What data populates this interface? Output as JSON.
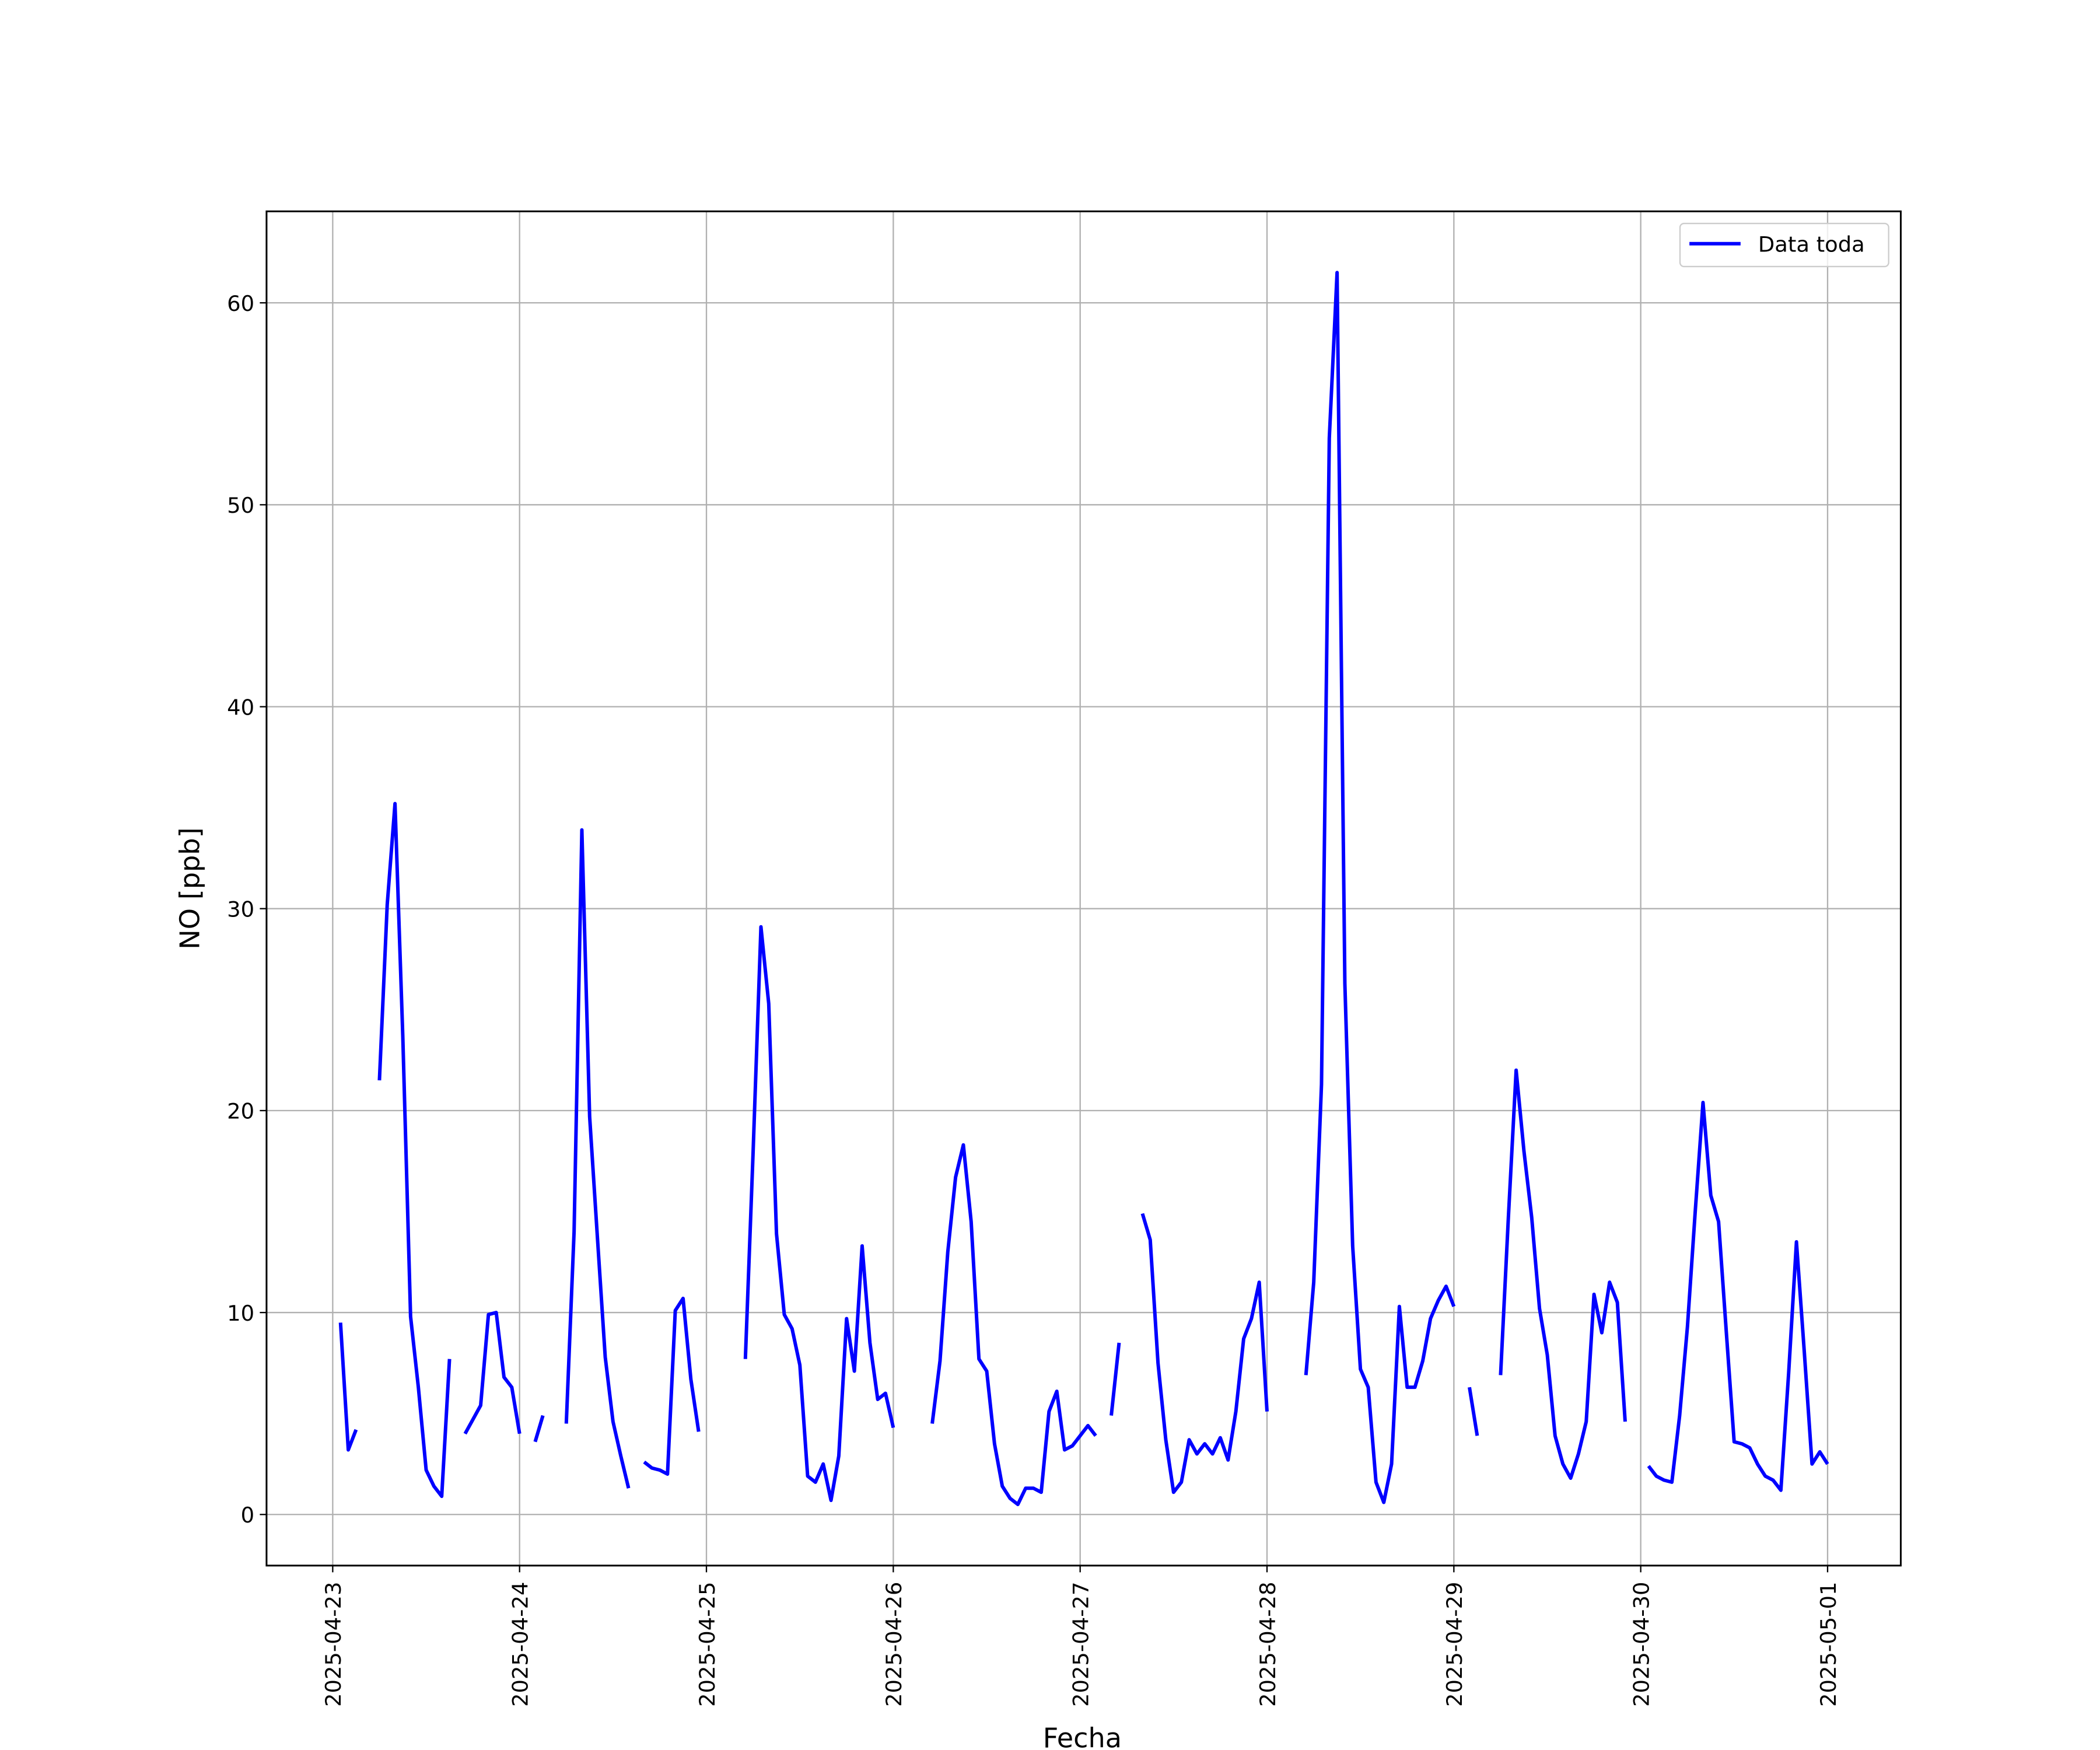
{
  "chart_data": {
    "type": "line",
    "xlabel": "Fecha",
    "ylabel": "NO [ppb]",
    "legend": "upper right",
    "grid": true,
    "xlim": [
      "2025-04-22 15:30",
      "2025-05-01 09:24"
    ],
    "xticks": [
      "2025-04-23",
      "2025-04-24",
      "2025-04-25",
      "2025-04-26",
      "2025-04-27",
      "2025-04-28",
      "2025-04-29",
      "2025-04-30",
      "2025-05-01"
    ],
    "ylim": [
      -2.53,
      64.53
    ],
    "yticks": [
      0,
      10,
      20,
      30,
      40,
      50,
      60
    ],
    "x": [
      "2025-04-23 01:00",
      "2025-04-23 02:00",
      "2025-04-23 03:00",
      "2025-04-23 04:00",
      "2025-04-23 06:00",
      "2025-04-23 07:00",
      "2025-04-23 08:00",
      "2025-04-23 09:00",
      "2025-04-23 10:00",
      "2025-04-23 11:00",
      "2025-04-23 12:00",
      "2025-04-23 13:00",
      "2025-04-23 14:00",
      "2025-04-23 15:00",
      "2025-04-23 16:00",
      "2025-04-23 17:00",
      "2025-04-23 18:00",
      "2025-04-23 19:00",
      "2025-04-23 20:00",
      "2025-04-23 21:00",
      "2025-04-23 22:00",
      "2025-04-23 23:00",
      "2025-04-24 00:00",
      "2025-04-24 01:00",
      "2025-04-24 02:00",
      "2025-04-24 03:00",
      "2025-04-24 04:00",
      "2025-04-24 06:00",
      "2025-04-24 07:00",
      "2025-04-24 08:00",
      "2025-04-24 09:00",
      "2025-04-24 10:00",
      "2025-04-24 11:00",
      "2025-04-24 12:00",
      "2025-04-24 13:00",
      "2025-04-24 14:00",
      "2025-04-24 15:00",
      "2025-04-24 16:00",
      "2025-04-24 17:00",
      "2025-04-24 18:00",
      "2025-04-24 19:00",
      "2025-04-24 20:00",
      "2025-04-24 21:00",
      "2025-04-24 22:00",
      "2025-04-24 23:00",
      "2025-04-25 00:00",
      "2025-04-25 05:00",
      "2025-04-25 06:00",
      "2025-04-25 07:00",
      "2025-04-25 08:00",
      "2025-04-25 09:00",
      "2025-04-25 10:00",
      "2025-04-25 11:00",
      "2025-04-25 12:00",
      "2025-04-25 13:00",
      "2025-04-25 14:00",
      "2025-04-25 15:00",
      "2025-04-25 16:00",
      "2025-04-25 17:00",
      "2025-04-25 18:00",
      "2025-04-25 19:00",
      "2025-04-25 20:00",
      "2025-04-25 21:00",
      "2025-04-25 22:00",
      "2025-04-25 23:00",
      "2025-04-26 00:00",
      "2025-04-26 01:00",
      "2025-04-26 05:00",
      "2025-04-26 06:00",
      "2025-04-26 07:00",
      "2025-04-26 08:00",
      "2025-04-26 09:00",
      "2025-04-26 10:00",
      "2025-04-26 11:00",
      "2025-04-26 12:00",
      "2025-04-26 13:00",
      "2025-04-26 14:00",
      "2025-04-26 15:00",
      "2025-04-26 16:00",
      "2025-04-26 17:00",
      "2025-04-26 18:00",
      "2025-04-26 19:00",
      "2025-04-26 20:00",
      "2025-04-26 21:00",
      "2025-04-26 22:00",
      "2025-04-26 23:00",
      "2025-04-27 00:00",
      "2025-04-27 01:00",
      "2025-04-27 02:00",
      "2025-04-27 03:00",
      "2025-04-27 04:00",
      "2025-04-27 05:00",
      "2025-04-27 06:00",
      "2025-04-27 08:00",
      "2025-04-27 09:00",
      "2025-04-27 10:00",
      "2025-04-27 11:00",
      "2025-04-27 12:00",
      "2025-04-27 13:00",
      "2025-04-27 14:00",
      "2025-04-27 15:00",
      "2025-04-27 16:00",
      "2025-04-27 17:00",
      "2025-04-27 18:00",
      "2025-04-27 19:00",
      "2025-04-27 20:00",
      "2025-04-27 21:00",
      "2025-04-27 22:00",
      "2025-04-27 23:00",
      "2025-04-28 00:00",
      "2025-04-28 01:00",
      "2025-04-28 05:00",
      "2025-04-28 06:00",
      "2025-04-28 07:00",
      "2025-04-28 08:00",
      "2025-04-28 09:00",
      "2025-04-28 10:00",
      "2025-04-28 11:00",
      "2025-04-28 12:00",
      "2025-04-28 13:00",
      "2025-04-28 14:00",
      "2025-04-28 15:00",
      "2025-04-28 16:00",
      "2025-04-28 17:00",
      "2025-04-28 18:00",
      "2025-04-28 19:00",
      "2025-04-28 20:00",
      "2025-04-28 21:00",
      "2025-04-28 22:00",
      "2025-04-28 23:00",
      "2025-04-29 00:00",
      "2025-04-29 01:00",
      "2025-04-29 02:00",
      "2025-04-29 03:00",
      "2025-04-29 04:00",
      "2025-04-29 06:00",
      "2025-04-29 07:00",
      "2025-04-29 08:00",
      "2025-04-29 09:00",
      "2025-04-29 10:00",
      "2025-04-29 11:00",
      "2025-04-29 12:00",
      "2025-04-29 13:00",
      "2025-04-29 14:00",
      "2025-04-29 15:00",
      "2025-04-29 16:00",
      "2025-04-29 17:00",
      "2025-04-29 18:00",
      "2025-04-29 19:00",
      "2025-04-29 20:00",
      "2025-04-29 21:00",
      "2025-04-29 22:00",
      "2025-04-29 23:00",
      "2025-04-30 01:00",
      "2025-04-30 02:00",
      "2025-04-30 03:00",
      "2025-04-30 04:00",
      "2025-04-30 05:00",
      "2025-04-30 06:00",
      "2025-04-30 07:00",
      "2025-04-30 08:00",
      "2025-04-30 09:00",
      "2025-04-30 10:00",
      "2025-04-30 11:00",
      "2025-04-30 12:00",
      "2025-04-30 13:00",
      "2025-04-30 14:00",
      "2025-04-30 15:00",
      "2025-04-30 16:00",
      "2025-04-30 17:00",
      "2025-04-30 18:00",
      "2025-04-30 19:00",
      "2025-04-30 20:00",
      "2025-04-30 21:00",
      "2025-04-30 22:00",
      "2025-04-30 23:00",
      "2025-05-01 00:00"
    ],
    "series": [
      {
        "name": "Data toda",
        "color": "#0000ff",
        "values": [
          9.5,
          3.2,
          4.2,
          null,
          21.5,
          30.2,
          35.2,
          23.7,
          9.8,
          6.3,
          2.2,
          1.4,
          0.9,
          7.7,
          null,
          4.0,
          4.7,
          5.4,
          9.9,
          10.0,
          6.8,
          6.3,
          4.0,
          null,
          3.6,
          4.9,
          null,
          4.5,
          14,
          33.9,
          19.7,
          13.7,
          7.8,
          4.6,
          2.9,
          1.3,
          null,
          2.6,
          2.3,
          2.2,
          2.0,
          10.1,
          10.7,
          6.7,
          4.1,
          null,
          7.7,
          18,
          29.1,
          25.3,
          13.9,
          9.9,
          9.2,
          7.4,
          1.9,
          1.6,
          2.5,
          0.7,
          2.9,
          9.7,
          7.1,
          13.3,
          8.5,
          5.7,
          6.0,
          4.3,
          null,
          4.5,
          7.6,
          13,
          16.7,
          18.3,
          14.5,
          7.7,
          7.1,
          3.5,
          1.4,
          0.8,
          0.5,
          1.3,
          1.3,
          1.1,
          5.1,
          6.1,
          3.2,
          3.4,
          3.9,
          4.4,
          3.9,
          null,
          4.9,
          8.5,
          null,
          14.9,
          13.6,
          7.5,
          3.7,
          1.1,
          1.6,
          3.7,
          3.0,
          3.5,
          3.0,
          3.8,
          2.7,
          5.1,
          8.7,
          9.7,
          11.5,
          5.1,
          null,
          6.9,
          11.5,
          21.3,
          53.3,
          61.5,
          26.3,
          13.3,
          7.2,
          6.3,
          1.6,
          0.6,
          2.5,
          10.3,
          6.3,
          6.3,
          7.6,
          9.7,
          10.6,
          11.3,
          10.3,
          null,
          6.3,
          3.9,
          null,
          6.9,
          14.7,
          22,
          18,
          14.7,
          10.2,
          7.9,
          3.9,
          2.5,
          1.8,
          3.0,
          4.6,
          10.9,
          9.0,
          11.5,
          10.5,
          4.6,
          null,
          2.4,
          1.9,
          1.7,
          1.6,
          4.9,
          9.3,
          15,
          20.4,
          15.8,
          14.5,
          9.0,
          3.6,
          3.5,
          3.3,
          2.5,
          1.9,
          1.7,
          1.2,
          7,
          13.5,
          8.1,
          2.5,
          3.1,
          2.5
        ]
      }
    ]
  }
}
